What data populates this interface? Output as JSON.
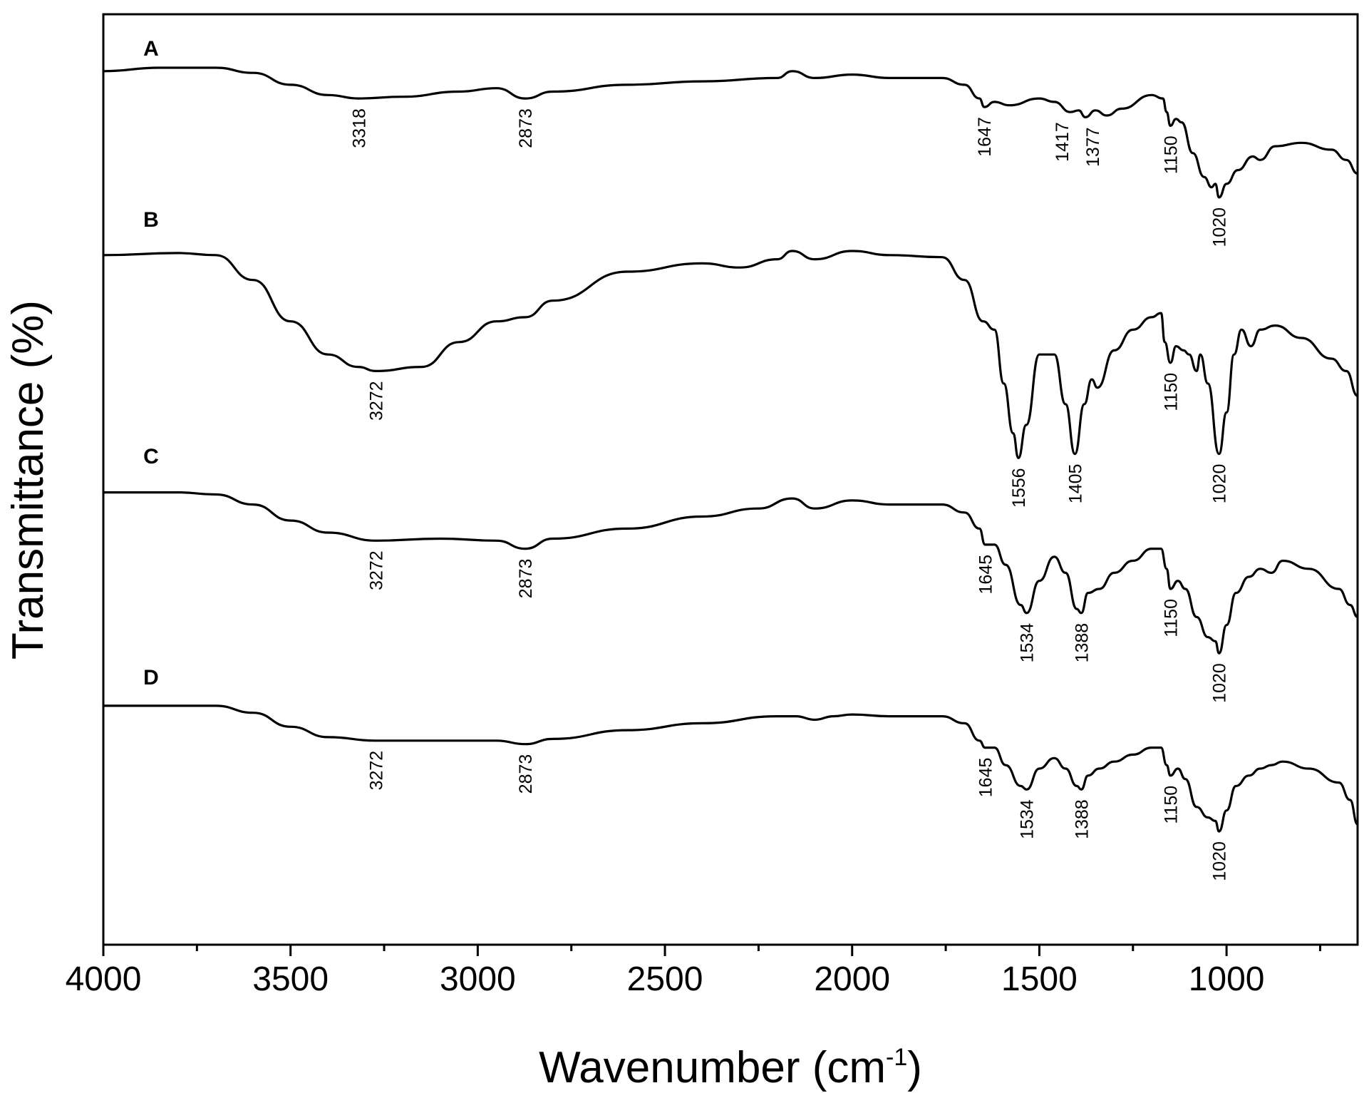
{
  "chart_data": {
    "type": "line",
    "xlabel": "Wavenumber (cm",
    "xlabel_sup": "-1",
    "xlabel_close": ")",
    "ylabel": "Transmittance (%)",
    "xlim": [
      4000,
      650
    ],
    "x_reversed": true,
    "xticks": [
      4000,
      3500,
      3000,
      2500,
      2000,
      1500,
      1000
    ],
    "xtick_labels": [
      "4000",
      "3500",
      "3000",
      "2500",
      "2000",
      "1500",
      "1000"
    ],
    "minor_xticks": [
      3750,
      3250,
      2750,
      2250,
      1750,
      1250,
      750
    ],
    "y_ticks_shown": false,
    "grid": false,
    "series": [
      {
        "name": "A",
        "offset": 0.0,
        "points": [
          [
            4000,
            0.86
          ],
          [
            3850,
            0.87
          ],
          [
            3700,
            0.87
          ],
          [
            3600,
            0.855
          ],
          [
            3500,
            0.82
          ],
          [
            3400,
            0.79
          ],
          [
            3318,
            0.78
          ],
          [
            3200,
            0.785
          ],
          [
            3050,
            0.8
          ],
          [
            2950,
            0.81
          ],
          [
            2873,
            0.78
          ],
          [
            2800,
            0.8
          ],
          [
            2600,
            0.82
          ],
          [
            2400,
            0.83
          ],
          [
            2200,
            0.84
          ],
          [
            2160,
            0.86
          ],
          [
            2100,
            0.84
          ],
          [
            2000,
            0.85
          ],
          [
            1900,
            0.84
          ],
          [
            1760,
            0.84
          ],
          [
            1700,
            0.82
          ],
          [
            1660,
            0.78
          ],
          [
            1647,
            0.755
          ],
          [
            1620,
            0.77
          ],
          [
            1580,
            0.76
          ],
          [
            1500,
            0.78
          ],
          [
            1460,
            0.77
          ],
          [
            1417,
            0.74
          ],
          [
            1395,
            0.745
          ],
          [
            1377,
            0.725
          ],
          [
            1350,
            0.745
          ],
          [
            1320,
            0.73
          ],
          [
            1280,
            0.75
          ],
          [
            1200,
            0.79
          ],
          [
            1170,
            0.78
          ],
          [
            1160,
            0.74
          ],
          [
            1150,
            0.7
          ],
          [
            1135,
            0.72
          ],
          [
            1120,
            0.71
          ],
          [
            1090,
            0.62
          ],
          [
            1060,
            0.55
          ],
          [
            1040,
            0.52
          ],
          [
            1030,
            0.53
          ],
          [
            1020,
            0.49
          ],
          [
            1000,
            0.53
          ],
          [
            970,
            0.57
          ],
          [
            930,
            0.61
          ],
          [
            910,
            0.6
          ],
          [
            870,
            0.64
          ],
          [
            800,
            0.65
          ],
          [
            720,
            0.63
          ],
          [
            680,
            0.6
          ],
          [
            650,
            0.56
          ]
        ]
      },
      {
        "name": "B",
        "offset": 0.0,
        "points": [
          [
            4000,
            0.86
          ],
          [
            3800,
            0.865
          ],
          [
            3700,
            0.86
          ],
          [
            3600,
            0.8
          ],
          [
            3500,
            0.7
          ],
          [
            3400,
            0.62
          ],
          [
            3320,
            0.59
          ],
          [
            3272,
            0.58
          ],
          [
            3150,
            0.59
          ],
          [
            3050,
            0.65
          ],
          [
            2950,
            0.7
          ],
          [
            2873,
            0.71
          ],
          [
            2800,
            0.75
          ],
          [
            2600,
            0.82
          ],
          [
            2400,
            0.84
          ],
          [
            2300,
            0.83
          ],
          [
            2200,
            0.85
          ],
          [
            2160,
            0.87
          ],
          [
            2100,
            0.85
          ],
          [
            2000,
            0.87
          ],
          [
            1900,
            0.86
          ],
          [
            1760,
            0.855
          ],
          [
            1700,
            0.8
          ],
          [
            1650,
            0.7
          ],
          [
            1620,
            0.68
          ],
          [
            1595,
            0.55
          ],
          [
            1570,
            0.43
          ],
          [
            1556,
            0.37
          ],
          [
            1535,
            0.45
          ],
          [
            1500,
            0.62
          ],
          [
            1460,
            0.62
          ],
          [
            1430,
            0.5
          ],
          [
            1405,
            0.38
          ],
          [
            1380,
            0.5
          ],
          [
            1360,
            0.56
          ],
          [
            1345,
            0.54
          ],
          [
            1300,
            0.63
          ],
          [
            1250,
            0.68
          ],
          [
            1200,
            0.71
          ],
          [
            1175,
            0.72
          ],
          [
            1165,
            0.65
          ],
          [
            1150,
            0.6
          ],
          [
            1135,
            0.64
          ],
          [
            1115,
            0.63
          ],
          [
            1100,
            0.62
          ],
          [
            1080,
            0.58
          ],
          [
            1070,
            0.62
          ],
          [
            1050,
            0.55
          ],
          [
            1020,
            0.38
          ],
          [
            1000,
            0.48
          ],
          [
            980,
            0.62
          ],
          [
            960,
            0.68
          ],
          [
            935,
            0.64
          ],
          [
            910,
            0.68
          ],
          [
            870,
            0.69
          ],
          [
            800,
            0.66
          ],
          [
            720,
            0.61
          ],
          [
            680,
            0.58
          ],
          [
            650,
            0.52
          ]
        ]
      },
      {
        "name": "C",
        "offset": 0.0,
        "points": [
          [
            4000,
            0.86
          ],
          [
            3800,
            0.86
          ],
          [
            3700,
            0.855
          ],
          [
            3600,
            0.83
          ],
          [
            3500,
            0.79
          ],
          [
            3400,
            0.76
          ],
          [
            3272,
            0.74
          ],
          [
            3100,
            0.745
          ],
          [
            2950,
            0.74
          ],
          [
            2873,
            0.72
          ],
          [
            2800,
            0.745
          ],
          [
            2600,
            0.77
          ],
          [
            2400,
            0.8
          ],
          [
            2250,
            0.82
          ],
          [
            2160,
            0.845
          ],
          [
            2100,
            0.82
          ],
          [
            2000,
            0.84
          ],
          [
            1900,
            0.83
          ],
          [
            1760,
            0.83
          ],
          [
            1700,
            0.81
          ],
          [
            1660,
            0.77
          ],
          [
            1645,
            0.73
          ],
          [
            1620,
            0.73
          ],
          [
            1590,
            0.68
          ],
          [
            1550,
            0.58
          ],
          [
            1534,
            0.56
          ],
          [
            1500,
            0.64
          ],
          [
            1460,
            0.7
          ],
          [
            1430,
            0.66
          ],
          [
            1400,
            0.57
          ],
          [
            1388,
            0.56
          ],
          [
            1370,
            0.61
          ],
          [
            1340,
            0.62
          ],
          [
            1300,
            0.66
          ],
          [
            1250,
            0.69
          ],
          [
            1200,
            0.72
          ],
          [
            1175,
            0.72
          ],
          [
            1160,
            0.67
          ],
          [
            1150,
            0.62
          ],
          [
            1130,
            0.64
          ],
          [
            1110,
            0.62
          ],
          [
            1080,
            0.55
          ],
          [
            1050,
            0.5
          ],
          [
            1030,
            0.49
          ],
          [
            1020,
            0.46
          ],
          [
            1000,
            0.53
          ],
          [
            975,
            0.61
          ],
          [
            940,
            0.65
          ],
          [
            910,
            0.67
          ],
          [
            880,
            0.66
          ],
          [
            850,
            0.69
          ],
          [
            780,
            0.67
          ],
          [
            700,
            0.62
          ],
          [
            670,
            0.58
          ],
          [
            650,
            0.55
          ]
        ]
      },
      {
        "name": "D",
        "offset": 0.0,
        "points": [
          [
            4000,
            0.86
          ],
          [
            3800,
            0.86
          ],
          [
            3700,
            0.86
          ],
          [
            3600,
            0.84
          ],
          [
            3500,
            0.8
          ],
          [
            3400,
            0.77
          ],
          [
            3272,
            0.76
          ],
          [
            3100,
            0.76
          ],
          [
            2950,
            0.76
          ],
          [
            2873,
            0.75
          ],
          [
            2800,
            0.765
          ],
          [
            2600,
            0.79
          ],
          [
            2400,
            0.81
          ],
          [
            2200,
            0.83
          ],
          [
            2150,
            0.83
          ],
          [
            2100,
            0.82
          ],
          [
            2050,
            0.83
          ],
          [
            2000,
            0.835
          ],
          [
            1900,
            0.83
          ],
          [
            1760,
            0.83
          ],
          [
            1700,
            0.81
          ],
          [
            1660,
            0.76
          ],
          [
            1645,
            0.74
          ],
          [
            1620,
            0.74
          ],
          [
            1590,
            0.69
          ],
          [
            1550,
            0.63
          ],
          [
            1534,
            0.62
          ],
          [
            1500,
            0.68
          ],
          [
            1460,
            0.71
          ],
          [
            1430,
            0.68
          ],
          [
            1400,
            0.63
          ],
          [
            1388,
            0.62
          ],
          [
            1370,
            0.66
          ],
          [
            1340,
            0.68
          ],
          [
            1300,
            0.7
          ],
          [
            1250,
            0.72
          ],
          [
            1200,
            0.74
          ],
          [
            1175,
            0.74
          ],
          [
            1160,
            0.69
          ],
          [
            1150,
            0.66
          ],
          [
            1130,
            0.68
          ],
          [
            1110,
            0.65
          ],
          [
            1080,
            0.57
          ],
          [
            1050,
            0.54
          ],
          [
            1030,
            0.53
          ],
          [
            1020,
            0.5
          ],
          [
            1000,
            0.56
          ],
          [
            975,
            0.63
          ],
          [
            940,
            0.66
          ],
          [
            910,
            0.68
          ],
          [
            880,
            0.69
          ],
          [
            850,
            0.7
          ],
          [
            780,
            0.68
          ],
          [
            700,
            0.64
          ],
          [
            670,
            0.59
          ],
          [
            650,
            0.52
          ]
        ]
      }
    ],
    "peak_labels": [
      {
        "series": "A",
        "x": 3318,
        "text": "3318"
      },
      {
        "series": "A",
        "x": 2873,
        "text": "2873"
      },
      {
        "series": "A",
        "x": 1647,
        "text": "1647"
      },
      {
        "series": "A",
        "x": 1417,
        "text": "1417"
      },
      {
        "series": "A",
        "x": 1377,
        "text": "1377"
      },
      {
        "series": "A",
        "x": 1150,
        "text": "1150"
      },
      {
        "series": "A",
        "x": 1020,
        "text": "1020"
      },
      {
        "series": "B",
        "x": 3272,
        "text": "3272"
      },
      {
        "series": "B",
        "x": 1556,
        "text": "1556"
      },
      {
        "series": "B",
        "x": 1405,
        "text": "1405"
      },
      {
        "series": "B",
        "x": 1150,
        "text": "1150"
      },
      {
        "series": "B",
        "x": 1020,
        "text": "1020"
      },
      {
        "series": "C",
        "x": 3272,
        "text": "3272"
      },
      {
        "series": "C",
        "x": 2873,
        "text": "2873"
      },
      {
        "series": "C",
        "x": 1645,
        "text": "1645"
      },
      {
        "series": "C",
        "x": 1534,
        "text": "1534"
      },
      {
        "series": "C",
        "x": 1388,
        "text": "1388"
      },
      {
        "series": "C",
        "x": 1150,
        "text": "1150"
      },
      {
        "series": "C",
        "x": 1020,
        "text": "1020"
      },
      {
        "series": "D",
        "x": 3272,
        "text": "3272"
      },
      {
        "series": "D",
        "x": 2873,
        "text": "2873"
      },
      {
        "series": "D",
        "x": 1645,
        "text": "1645"
      },
      {
        "series": "D",
        "x": 1534,
        "text": "1534"
      },
      {
        "series": "D",
        "x": 1388,
        "text": "1388"
      },
      {
        "series": "D",
        "x": 1150,
        "text": "1150"
      },
      {
        "series": "D",
        "x": 1020,
        "text": "1020"
      }
    ]
  }
}
